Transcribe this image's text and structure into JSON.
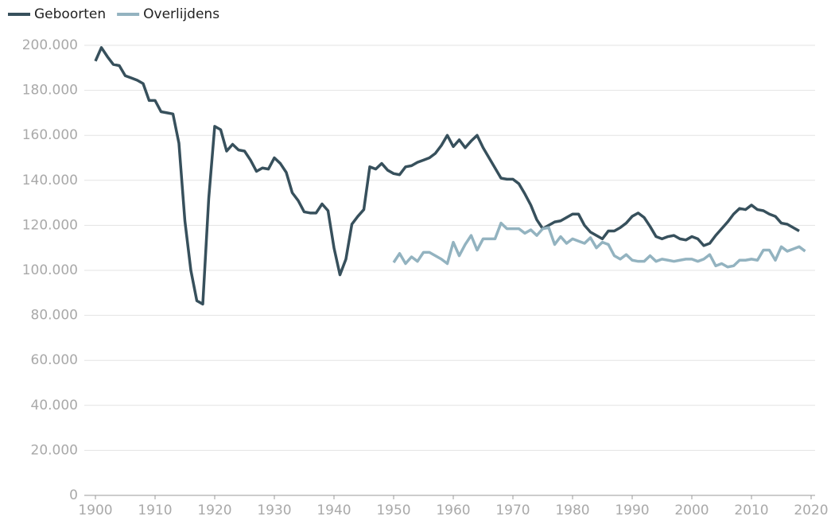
{
  "chart_data": {
    "type": "line",
    "x": [
      1900,
      1901,
      1902,
      1903,
      1904,
      1905,
      1906,
      1907,
      1908,
      1909,
      1910,
      1911,
      1912,
      1913,
      1914,
      1915,
      1916,
      1917,
      1918,
      1919,
      1920,
      1921,
      1922,
      1923,
      1924,
      1925,
      1926,
      1927,
      1928,
      1929,
      1930,
      1931,
      1932,
      1933,
      1934,
      1935,
      1936,
      1937,
      1938,
      1939,
      1940,
      1941,
      1942,
      1943,
      1944,
      1945,
      1946,
      1947,
      1948,
      1949,
      1950,
      1951,
      1952,
      1953,
      1954,
      1955,
      1956,
      1957,
      1958,
      1959,
      1960,
      1961,
      1962,
      1963,
      1964,
      1965,
      1966,
      1967,
      1968,
      1969,
      1970,
      1971,
      1972,
      1973,
      1974,
      1975,
      1976,
      1977,
      1978,
      1979,
      1980,
      1981,
      1982,
      1983,
      1984,
      1985,
      1986,
      1987,
      1988,
      1989,
      1990,
      1991,
      1992,
      1993,
      1994,
      1995,
      1996,
      1997,
      1998,
      1999,
      2000,
      2001,
      2002,
      2003,
      2004,
      2005,
      2006,
      2007,
      2008,
      2009,
      2010,
      2011,
      2012,
      2013,
      2014,
      2015,
      2016,
      2017,
      2018,
      2019
    ],
    "series": [
      {
        "name": "Geboorten",
        "color": "#37505c",
        "values": [
          193000,
          199000,
          195000,
          191500,
          191000,
          186500,
          185500,
          184500,
          183000,
          175500,
          175500,
          170500,
          170000,
          169500,
          156500,
          122000,
          100000,
          86500,
          85000,
          132000,
          164000,
          162500,
          153000,
          156000,
          153500,
          153000,
          149000,
          144000,
          145500,
          145000,
          150000,
          147500,
          143500,
          134500,
          131000,
          126000,
          125500,
          125500,
          129500,
          126500,
          110000,
          98000,
          105000,
          120500,
          124000,
          127000,
          146000,
          145000,
          147500,
          144500,
          143000,
          142500,
          146000,
          146500,
          148000,
          149000,
          150000,
          152000,
          155500,
          160000,
          155000,
          158000,
          154500,
          157500,
          160000,
          154500,
          150000,
          145500,
          141000,
          140500,
          140500,
          138500,
          134000,
          129000,
          122500,
          118500,
          120000,
          121500,
          122000,
          123500,
          125000,
          125000,
          120000,
          117000,
          115500,
          114000,
          117500,
          117500,
          119000,
          121000,
          124000,
          125500,
          123500,
          119500,
          115000,
          114000,
          115000,
          115500,
          114000,
          113500,
          115000,
          114000,
          111000,
          112000,
          115500,
          118500,
          121500,
          125000,
          127500,
          127000,
          129000,
          127000,
          126500,
          125000,
          124000,
          121000,
          120500,
          119000,
          117500,
          null
        ]
      },
      {
        "name": "Overlijdens",
        "color": "#93b3c0",
        "values": [
          null,
          null,
          null,
          null,
          null,
          null,
          null,
          null,
          null,
          null,
          null,
          null,
          null,
          null,
          null,
          null,
          null,
          null,
          null,
          null,
          null,
          null,
          null,
          null,
          null,
          null,
          null,
          null,
          null,
          null,
          null,
          null,
          null,
          null,
          null,
          null,
          null,
          null,
          null,
          null,
          null,
          null,
          null,
          null,
          null,
          null,
          null,
          null,
          null,
          null,
          103500,
          107500,
          103000,
          106000,
          104000,
          108000,
          108000,
          106500,
          105000,
          103000,
          112500,
          106500,
          111500,
          115500,
          109000,
          114000,
          114000,
          114000,
          121000,
          118500,
          118500,
          118500,
          116500,
          118000,
          115500,
          118500,
          119000,
          111500,
          115000,
          112000,
          114000,
          113000,
          112000,
          114500,
          110000,
          112500,
          111500,
          106500,
          105000,
          107000,
          104500,
          104000,
          104000,
          106500,
          104000,
          105000,
          104500,
          104000,
          104500,
          105000,
          105000,
          104000,
          105000,
          107000,
          102000,
          103000,
          101500,
          102000,
          104500,
          104500,
          105000,
          104500,
          109000,
          109000,
          104500,
          110500,
          108500,
          109500,
          110500,
          108500
        ]
      }
    ],
    "xlim": [
      1900,
      2020
    ],
    "xticks": [
      1900,
      1910,
      1920,
      1930,
      1940,
      1950,
      1960,
      1970,
      1980,
      1990,
      2000,
      2010,
      2020
    ],
    "ylim": [
      0,
      200000
    ],
    "yticks": [
      0,
      {
        "value": 20000,
        "label": "20.000"
      },
      {
        "value": 40000,
        "label": "40.000"
      },
      {
        "value": 60000,
        "label": "60.000"
      },
      {
        "value": 80000,
        "label": "80.000"
      },
      {
        "value": 100000,
        "label": "100.000"
      },
      {
        "value": 120000,
        "label": "120.000"
      },
      {
        "value": 140000,
        "label": "140.000"
      },
      {
        "value": 160000,
        "label": "160.000"
      },
      {
        "value": 180000,
        "label": "180.000"
      },
      {
        "value": 200000,
        "label": "200.000"
      }
    ],
    "grid": true
  }
}
